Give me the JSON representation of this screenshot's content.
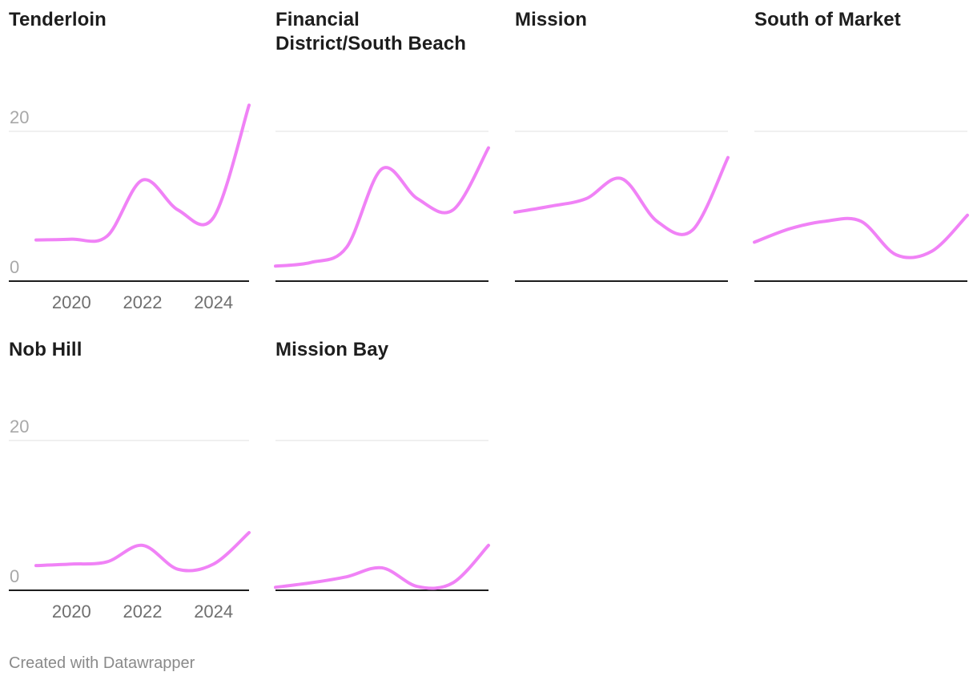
{
  "footer": {
    "credit": "Created with Datawrapper"
  },
  "colors": {
    "line": "#f082f6",
    "title": "#1d1d1d",
    "gridline": "#e0e0e0",
    "y_tick": "#a8a8a8",
    "x_tick": "#6f6f6f"
  },
  "chart_data": {
    "type": "line",
    "layout": "small-multiples",
    "columns": 4,
    "ylim": [
      0,
      20
    ],
    "y_ticks": [
      0,
      20
    ],
    "y_tick_labels": [
      "0",
      "20"
    ],
    "x_ticks": [
      2020,
      2022,
      2024
    ],
    "x_tick_labels": [
      "2020",
      "2022",
      "2024"
    ],
    "x": [
      2019,
      2020,
      2021,
      2022,
      2023,
      2024,
      2025
    ],
    "grid": true,
    "panels": [
      {
        "title": "Tenderloin",
        "values": [
          5.5,
          5.6,
          6.0,
          13.5,
          9.5,
          8.5,
          23.5
        ]
      },
      {
        "title": "Financial District/South Beach",
        "values": [
          2.0,
          2.5,
          4.5,
          15.0,
          11.0,
          9.5,
          17.8
        ]
      },
      {
        "title": "Mission",
        "values": [
          9.2,
          10.0,
          11.0,
          13.7,
          8.0,
          6.8,
          16.5
        ]
      },
      {
        "title": "South of Market",
        "values": [
          5.2,
          7.0,
          8.0,
          8.0,
          3.5,
          4.0,
          8.8
        ]
      },
      {
        "title": "Nob Hill",
        "values": [
          3.3,
          3.5,
          3.8,
          6.0,
          2.8,
          3.5,
          7.7
        ]
      },
      {
        "title": "Mission Bay",
        "values": [
          0.4,
          1.0,
          1.8,
          3.0,
          0.5,
          1.0,
          6.0
        ]
      }
    ]
  }
}
